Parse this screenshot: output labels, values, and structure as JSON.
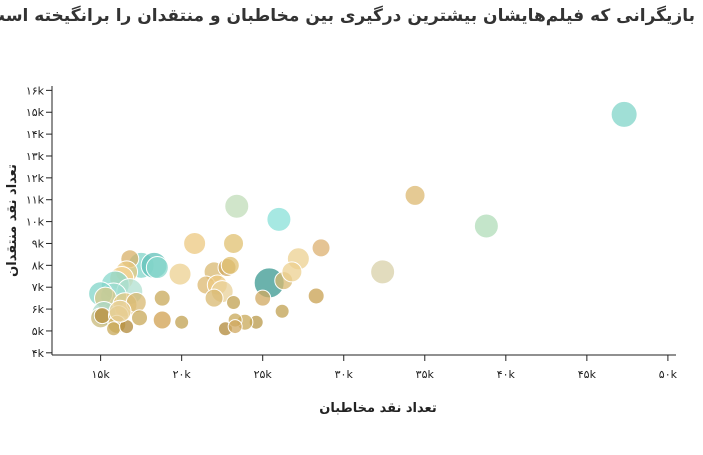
{
  "title": "بازیگرانی که فیلم‌هایشان بیشترین درگیری بین مخاطبان و منتقدان را برانگیخته است",
  "chart_data": {
    "type": "scatter",
    "title": "بازیگرانی که فیلم‌هایشان بیشترین درگیری بین مخاطبان و منتقدان را برانگیخته است",
    "xlabel": "تعداد نقد مخاطبان",
    "ylabel": "تعداد نقد منتقدان",
    "xlim": [
      12000,
      50500
    ],
    "ylim": [
      3900,
      16200
    ],
    "x_ticks": [
      15000,
      20000,
      25000,
      30000,
      35000,
      40000,
      45000,
      50000
    ],
    "x_tick_labels": [
      "۱۵k",
      "۲۰k",
      "۲۵k",
      "۳۰k",
      "۳۵k",
      "۴۰k",
      "۴۵k",
      "۵۰k"
    ],
    "y_ticks": [
      4000,
      5000,
      6000,
      7000,
      8000,
      9000,
      10000,
      11000,
      12000,
      13000,
      14000,
      15000,
      16000
    ],
    "y_tick_labels": [
      "۴k",
      "۵k",
      "۶k",
      "۷k",
      "۸k",
      "۹k",
      "۱۰k",
      "۱۱k",
      "۱۲k",
      "۱۳k",
      "۱۴k",
      "۱۵k",
      "۱۶k"
    ],
    "grid": false,
    "legend": "none",
    "points": [
      {
        "x": 47300,
        "y": 14900,
        "r": 13,
        "color": "#80d4c8"
      },
      {
        "x": 34400,
        "y": 11200,
        "r": 10,
        "color": "#dcb870"
      },
      {
        "x": 38800,
        "y": 9800,
        "r": 12,
        "color": "#b0dcb8"
      },
      {
        "x": 32400,
        "y": 7700,
        "r": 12,
        "color": "#d8d0a8"
      },
      {
        "x": 23400,
        "y": 10700,
        "r": 12,
        "color": "#c0dcb8"
      },
      {
        "x": 26000,
        "y": 10100,
        "r": 12,
        "color": "#88e0d8"
      },
      {
        "x": 20800,
        "y": 9000,
        "r": 11,
        "color": "#ecc880"
      },
      {
        "x": 23200,
        "y": 9000,
        "r": 10,
        "color": "#e0c070"
      },
      {
        "x": 28600,
        "y": 8800,
        "r": 9,
        "color": "#dcb070"
      },
      {
        "x": 27200,
        "y": 8300,
        "r": 11,
        "color": "#ecd090"
      },
      {
        "x": 25400,
        "y": 7200,
        "r": 15,
        "color": "#3a9890"
      },
      {
        "x": 26300,
        "y": 7300,
        "r": 9,
        "color": "#d8b870"
      },
      {
        "x": 26800,
        "y": 7700,
        "r": 10,
        "color": "#ecd090"
      },
      {
        "x": 28300,
        "y": 6600,
        "r": 8,
        "color": "#c8a050"
      },
      {
        "x": 25000,
        "y": 6500,
        "r": 8,
        "color": "#d0a860"
      },
      {
        "x": 26200,
        "y": 5900,
        "r": 7,
        "color": "#c0a050"
      },
      {
        "x": 24600,
        "y": 5400,
        "r": 7,
        "color": "#b89848"
      },
      {
        "x": 19900,
        "y": 7600,
        "r": 11,
        "color": "#ecd090"
      },
      {
        "x": 22000,
        "y": 7700,
        "r": 10,
        "color": "#d8b870"
      },
      {
        "x": 22800,
        "y": 7900,
        "r": 9,
        "color": "#d0a860"
      },
      {
        "x": 23000,
        "y": 8000,
        "r": 9,
        "color": "#e0c070"
      },
      {
        "x": 21500,
        "y": 7100,
        "r": 9,
        "color": "#dcb870"
      },
      {
        "x": 22200,
        "y": 7100,
        "r": 10,
        "color": "#ecc880"
      },
      {
        "x": 22500,
        "y": 6800,
        "r": 11,
        "color": "#e8d098"
      },
      {
        "x": 22000,
        "y": 6500,
        "r": 9,
        "color": "#d8b870"
      },
      {
        "x": 23200,
        "y": 6300,
        "r": 7,
        "color": "#c0a050"
      },
      {
        "x": 23900,
        "y": 5400,
        "r": 8,
        "color": "#c8a858"
      },
      {
        "x": 22700,
        "y": 5100,
        "r": 7,
        "color": "#b08838"
      },
      {
        "x": 23300,
        "y": 5500,
        "r": 7,
        "color": "#c8a858"
      },
      {
        "x": 23300,
        "y": 5200,
        "r": 7,
        "color": "#d0a860"
      },
      {
        "x": 20000,
        "y": 5400,
        "r": 7,
        "color": "#c0a050"
      },
      {
        "x": 17500,
        "y": 8000,
        "r": 13,
        "color": "#80d4c8"
      },
      {
        "x": 18300,
        "y": 8000,
        "r": 13,
        "color": "#60c0b8"
      },
      {
        "x": 18500,
        "y": 7900,
        "r": 11,
        "color": "#88d8cc"
      },
      {
        "x": 16800,
        "y": 8300,
        "r": 9,
        "color": "#d8b068"
      },
      {
        "x": 16600,
        "y": 7700,
        "r": 11,
        "color": "#e8c880"
      },
      {
        "x": 16300,
        "y": 7400,
        "r": 12,
        "color": "#f0d090"
      },
      {
        "x": 15900,
        "y": 7100,
        "r": 14,
        "color": "#88d8cc"
      },
      {
        "x": 16800,
        "y": 6800,
        "r": 13,
        "color": "#b0e0d0"
      },
      {
        "x": 15800,
        "y": 6600,
        "r": 13,
        "color": "#9cdcd0"
      },
      {
        "x": 15000,
        "y": 6700,
        "r": 12,
        "color": "#80d4c8"
      },
      {
        "x": 15300,
        "y": 6500,
        "r": 11,
        "color": "#d8c888"
      },
      {
        "x": 16500,
        "y": 6200,
        "r": 12,
        "color": "#e8c880"
      },
      {
        "x": 17200,
        "y": 6300,
        "r": 10,
        "color": "#d8b870"
      },
      {
        "x": 18800,
        "y": 6500,
        "r": 8,
        "color": "#c8a858"
      },
      {
        "x": 15200,
        "y": 5800,
        "r": 12,
        "color": "#a8d8c8"
      },
      {
        "x": 15000,
        "y": 5600,
        "r": 10,
        "color": "#c8b878"
      },
      {
        "x": 15100,
        "y": 5700,
        "r": 8,
        "color": "#b89040"
      },
      {
        "x": 16100,
        "y": 5700,
        "r": 10,
        "color": "#dcc078"
      },
      {
        "x": 16000,
        "y": 5300,
        "r": 9,
        "color": "#d0b060"
      },
      {
        "x": 15800,
        "y": 5100,
        "r": 7,
        "color": "#c8a858"
      },
      {
        "x": 16600,
        "y": 5200,
        "r": 7,
        "color": "#b08838"
      },
      {
        "x": 17400,
        "y": 5600,
        "r": 8,
        "color": "#c8a858"
      },
      {
        "x": 18800,
        "y": 5500,
        "r": 9,
        "color": "#d0a050"
      },
      {
        "x": 16200,
        "y": 5900,
        "r": 11,
        "color": "#e8d098"
      }
    ]
  }
}
